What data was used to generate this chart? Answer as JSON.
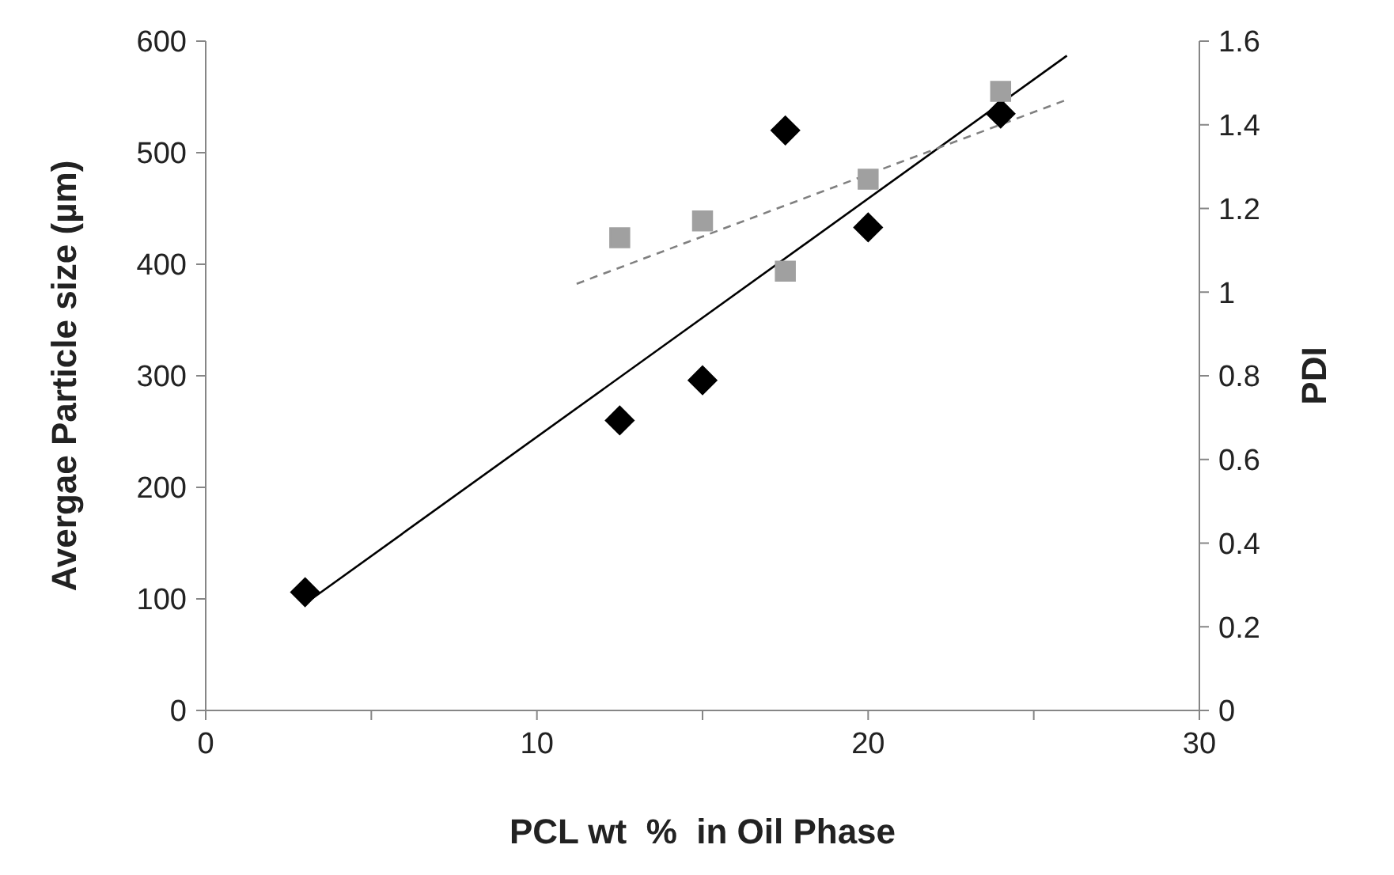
{
  "chart_data": {
    "type": "scatter",
    "xlabel": "PCL wt  %  in Oil Phase",
    "ylabel": "Avergae Particle size (µm)",
    "y2label": "PDI",
    "xlim": [
      0,
      30
    ],
    "xticks": [
      0,
      {
        "value": 5,
        "label": null
      },
      10,
      {
        "value": 15,
        "label": null
      },
      20,
      {
        "value": 25,
        "label": null
      },
      30
    ],
    "ylim": [
      0,
      600
    ],
    "yticks": [
      0,
      100,
      200,
      300,
      400,
      500,
      600
    ],
    "y2lim": [
      0,
      1.6
    ],
    "y2ticks": [
      0,
      0.2,
      0.4,
      0.6,
      0.8,
      1,
      1.2,
      1.4,
      1.6
    ],
    "grid": false,
    "series": [
      {
        "marker": "diamond",
        "color": "#000000",
        "x": [
          3,
          12.5,
          15,
          17.5,
          20,
          24
        ],
        "values": [
          106,
          260,
          296,
          520,
          433,
          535
        ]
      },
      {
        "marker": "square",
        "color": "#a0a0a0",
        "axis": "y2",
        "x": [
          12.5,
          15,
          17.5,
          20,
          24
        ],
        "values": [
          1.13,
          1.17,
          1.05,
          1.27,
          1.48
        ]
      },
      {
        "type": "line",
        "line_style": "solid",
        "color": "#000000",
        "x": [
          3.2,
          26
        ],
        "values": [
          100,
          587
        ]
      },
      {
        "type": "line",
        "line_style": "dashed",
        "color": "#808080",
        "axis": "y2",
        "x": [
          11.2,
          26
        ],
        "values": [
          1.02,
          1.46
        ]
      }
    ]
  }
}
